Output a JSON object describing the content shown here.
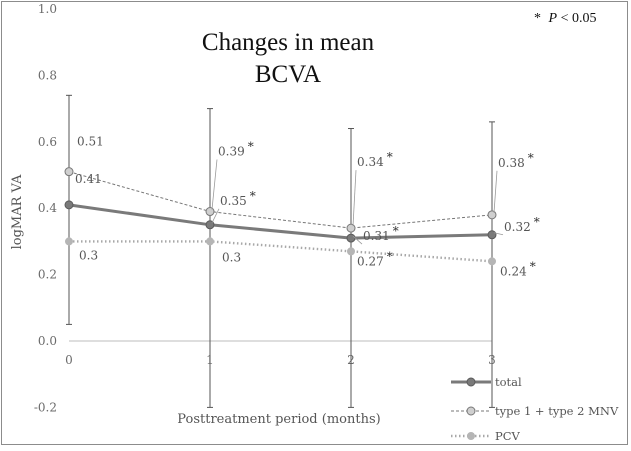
{
  "chart_data": {
    "type": "line",
    "title": [
      "Changes in mean",
      "BCVA"
    ],
    "significance_note": {
      "star": "*",
      "p": "P",
      "text": "< 0.05"
    },
    "xlabel": "Posttreatment period (months)",
    "ylabel": "logMAR VA",
    "x": [
      0,
      1,
      2,
      3
    ],
    "xlim": [
      0,
      3
    ],
    "ylim": [
      -0.2,
      1.0
    ],
    "y_ticks": [
      "-0.2",
      "0.0",
      "0.2",
      "0.4",
      "0.6",
      "0.8",
      "1.0"
    ],
    "x_ticks": [
      "0",
      "1",
      "2",
      "3"
    ],
    "grid": false,
    "legend_position": "bottom-right",
    "error_bars": [
      {
        "x": 0,
        "low": 0.05,
        "high": 0.74
      },
      {
        "x": 1,
        "low": -0.2,
        "high": 0.7
      },
      {
        "x": 2,
        "low": -0.2,
        "high": 0.64
      },
      {
        "x": 3,
        "low": -0.2,
        "high": 0.66
      }
    ],
    "series": [
      {
        "name": "total",
        "values": [
          0.41,
          0.35,
          0.31,
          0.32
        ],
        "labels": [
          "0.41",
          "0.35",
          "0.31",
          "0.32"
        ],
        "significant": [
          false,
          true,
          true,
          true
        ],
        "color": "#7a7a7a",
        "style": "solid-thick"
      },
      {
        "name": "type 1 + type 2 MNV",
        "values": [
          0.51,
          0.39,
          0.34,
          0.38
        ],
        "labels": [
          "0.51",
          "0.39",
          "0.34",
          "0.38"
        ],
        "significant": [
          false,
          true,
          true,
          true
        ],
        "color": "#777777",
        "style": "thin"
      },
      {
        "name": "PCV",
        "values": [
          0.3,
          0.3,
          0.27,
          0.24
        ],
        "labels": [
          "0.3",
          "0.3",
          "0.27",
          "0.24"
        ],
        "significant": [
          false,
          false,
          true,
          true
        ],
        "color": "#a8a8a8",
        "style": "dotted"
      }
    ]
  }
}
